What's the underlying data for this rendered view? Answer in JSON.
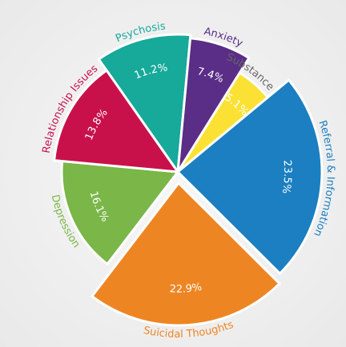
{
  "chart_data": {
    "type": "pie",
    "categories": [
      "Psychosis",
      "Anxiety",
      "Substance Use",
      "Referral & Information",
      "Suicidal Thoughts",
      "Depression",
      "Relationship Issues"
    ],
    "values": [
      11.2,
      7.4,
      5.1,
      23.5,
      22.9,
      16.1,
      13.8
    ],
    "value_labels": [
      "11.2%",
      "7.4%",
      "5.1%",
      "23.5%",
      "22.9%",
      "16.1%",
      "13.8%"
    ],
    "colors": [
      "#17a99a",
      "#5a2d86",
      "#fbe134",
      "#1b7fc1",
      "#ee8523",
      "#7ab648",
      "#c8114b"
    ],
    "label_colors": [
      "#17a99a",
      "#5a2d86",
      "#666666",
      "#1b7fc1",
      "#ee8523",
      "#7ab648",
      "#c8114b"
    ]
  }
}
